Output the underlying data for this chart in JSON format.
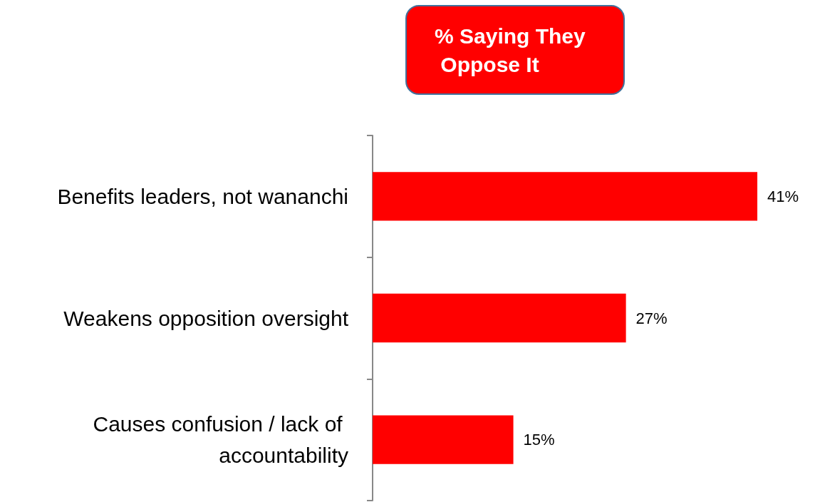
{
  "chart_data": {
    "type": "bar",
    "orientation": "horizontal",
    "title": "% Saying They Oppose It",
    "categories": [
      "Benefits leaders, not wananchi",
      "Weakens opposition oversight",
      "Causes confusion / lack of accountability"
    ],
    "values": [
      41,
      27,
      15
    ],
    "value_labels": [
      "41%",
      "27%",
      "15%"
    ],
    "color": "#ff0000"
  }
}
